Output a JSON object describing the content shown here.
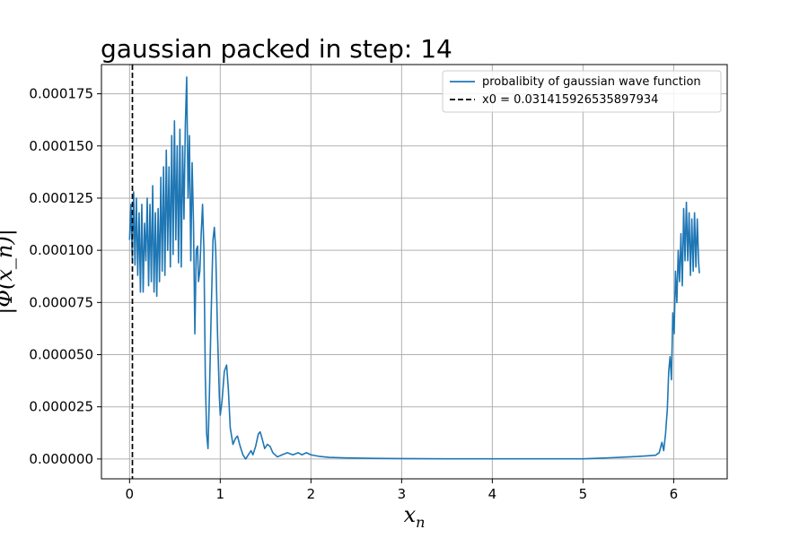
{
  "chart_data": {
    "type": "line",
    "title": "gaussian packed in step: 14",
    "xlabel": "x_n",
    "ylabel": "|Φ(x_n)|",
    "xlim": [
      -0.31,
      6.59
    ],
    "ylim": [
      -9.5e-06,
      0.000189
    ],
    "x_ticks": [
      0,
      1,
      2,
      3,
      4,
      5,
      6
    ],
    "x_tick_labels": [
      "0",
      "1",
      "2",
      "3",
      "4",
      "5",
      "6"
    ],
    "y_ticks": [
      0,
      2.5e-05,
      5e-05,
      7.5e-05,
      0.0001,
      0.000125,
      0.00015,
      0.000175
    ],
    "y_tick_labels": [
      "0.000000",
      "0.000025",
      "0.000050",
      "0.000075",
      "0.000100",
      "0.000125",
      "0.000150",
      "0.000175"
    ],
    "grid": true,
    "legend_position": "top-right",
    "vline": {
      "x": 0.031415926535897934,
      "style": "dashed",
      "color": "#000000",
      "label": "x0 = 0.031415926535897934"
    },
    "series": [
      {
        "name": "probalibity of gaussian wave function",
        "color": "#1f77b4",
        "points": [
          [
            0.0,
            0.000105
          ],
          [
            0.015,
            0.000122
          ],
          [
            0.03,
            9.6e-05
          ],
          [
            0.045,
            0.000128
          ],
          [
            0.06,
            9.3e-05
          ],
          [
            0.075,
            0.000125
          ],
          [
            0.09,
            8.8e-05
          ],
          [
            0.105,
            0.000118
          ],
          [
            0.12,
            8e-05
          ],
          [
            0.135,
            0.000122
          ],
          [
            0.15,
            8e-05
          ],
          [
            0.165,
            0.000113
          ],
          [
            0.18,
            9.5e-05
          ],
          [
            0.195,
            0.000125
          ],
          [
            0.21,
            8.3e-05
          ],
          [
            0.225,
            0.000122
          ],
          [
            0.24,
            8.5e-05
          ],
          [
            0.255,
            0.000131
          ],
          [
            0.27,
            8e-05
          ],
          [
            0.285,
            0.000118
          ],
          [
            0.3,
            7.8e-05
          ],
          [
            0.315,
            0.00012
          ],
          [
            0.33,
            8.5e-05
          ],
          [
            0.345,
            0.000135
          ],
          [
            0.36,
            9e-05
          ],
          [
            0.375,
            0.00014
          ],
          [
            0.39,
            8.8e-05
          ],
          [
            0.405,
            0.000148
          ],
          [
            0.42,
            0.0001
          ],
          [
            0.435,
            0.00014
          ],
          [
            0.45,
            9.2e-05
          ],
          [
            0.465,
            0.000155
          ],
          [
            0.48,
            9.8e-05
          ],
          [
            0.495,
            0.000162
          ],
          [
            0.51,
            0.000105
          ],
          [
            0.525,
            0.00015
          ],
          [
            0.54,
            9.4e-05
          ],
          [
            0.555,
            0.000158
          ],
          [
            0.57,
            9.2e-05
          ],
          [
            0.585,
            0.00015
          ],
          [
            0.6,
            0.000115
          ],
          [
            0.615,
            0.00016
          ],
          [
            0.63,
            0.000183
          ],
          [
            0.645,
            0.000125
          ],
          [
            0.66,
            0.000155
          ],
          [
            0.675,
            9.5e-05
          ],
          [
            0.69,
            0.000142
          ],
          [
            0.705,
            0.000113
          ],
          [
            0.72,
            6e-05
          ],
          [
            0.735,
            0.0001
          ],
          [
            0.75,
            0.000102
          ],
          [
            0.76,
            8.5e-05
          ],
          [
            0.775,
            9e-05
          ],
          [
            0.79,
            0.000108
          ],
          [
            0.805,
            0.000122
          ],
          [
            0.82,
            0.0001
          ],
          [
            0.835,
            4e-05
          ],
          [
            0.85,
            1.2e-05
          ],
          [
            0.865,
            5e-06
          ],
          [
            0.88,
            3e-05
          ],
          [
            0.9,
            7e-05
          ],
          [
            0.92,
            0.000105
          ],
          [
            0.935,
            0.000111
          ],
          [
            0.95,
            0.0001
          ],
          [
            0.97,
            6e-05
          ],
          [
            0.99,
            3e-05
          ],
          [
            1.0,
            2.1e-05
          ],
          [
            1.02,
            2.8e-05
          ],
          [
            1.045,
            4.2e-05
          ],
          [
            1.07,
            4.5e-05
          ],
          [
            1.09,
            3.3e-05
          ],
          [
            1.11,
            1.5e-05
          ],
          [
            1.14,
            7e-06
          ],
          [
            1.17,
            1e-05
          ],
          [
            1.19,
            1.1e-05
          ],
          [
            1.22,
            6e-06
          ],
          [
            1.25,
            2e-06
          ],
          [
            1.28,
            0.0
          ],
          [
            1.31,
            2e-06
          ],
          [
            1.34,
            4e-06
          ],
          [
            1.36,
            2e-06
          ],
          [
            1.39,
            6e-06
          ],
          [
            1.42,
            1.2e-05
          ],
          [
            1.44,
            1.3e-05
          ],
          [
            1.46,
            1e-05
          ],
          [
            1.49,
            5e-06
          ],
          [
            1.52,
            7e-06
          ],
          [
            1.55,
            6e-06
          ],
          [
            1.58,
            3e-06
          ],
          [
            1.63,
            1e-06
          ],
          [
            1.68,
            2e-06
          ],
          [
            1.74,
            3e-06
          ],
          [
            1.8,
            2e-06
          ],
          [
            1.86,
            3e-06
          ],
          [
            1.9,
            2e-06
          ],
          [
            1.95,
            3e-06
          ],
          [
            2.0,
            2e-06
          ],
          [
            2.1,
            1.2e-06
          ],
          [
            2.2,
            8e-07
          ],
          [
            2.4,
            5e-07
          ],
          [
            2.7,
            3e-07
          ],
          [
            3.0,
            2e-07
          ],
          [
            3.5,
            1e-07
          ],
          [
            4.0,
            1e-07
          ],
          [
            4.5,
            1e-07
          ],
          [
            5.0,
            1e-07
          ],
          [
            5.2,
            4e-07
          ],
          [
            5.3,
            6e-07
          ],
          [
            5.4,
            8e-07
          ],
          [
            5.5,
            1e-06
          ],
          [
            5.6,
            1.2e-06
          ],
          [
            5.7,
            1.5e-06
          ],
          [
            5.8,
            1.8e-06
          ],
          [
            5.84,
            3e-06
          ],
          [
            5.87,
            8e-06
          ],
          [
            5.89,
            4e-06
          ],
          [
            5.91,
            1.2e-05
          ],
          [
            5.93,
            2.4e-05
          ],
          [
            5.945,
            4.2e-05
          ],
          [
            5.96,
            4.9e-05
          ],
          [
            5.975,
            3.8e-05
          ],
          [
            5.99,
            7e-05
          ],
          [
            6.005,
            6e-05
          ],
          [
            6.02,
            9e-05
          ],
          [
            6.035,
            7.5e-05
          ],
          [
            6.05,
            0.0001
          ],
          [
            6.065,
            8.5e-05
          ],
          [
            6.08,
            0.000108
          ],
          [
            6.095,
            8.3e-05
          ],
          [
            6.11,
            0.00012
          ],
          [
            6.125,
            9.5e-05
          ],
          [
            6.14,
            0.000123
          ],
          [
            6.155,
            9.5e-05
          ],
          [
            6.17,
            0.000118
          ],
          [
            6.185,
            8.8e-05
          ],
          [
            6.2,
            0.000115
          ],
          [
            6.215,
            9e-05
          ],
          [
            6.23,
            0.000118
          ],
          [
            6.245,
            9.2e-05
          ],
          [
            6.26,
            0.000115
          ],
          [
            6.275,
            9.4e-05
          ],
          [
            6.283,
            8.9e-05
          ]
        ]
      }
    ]
  }
}
